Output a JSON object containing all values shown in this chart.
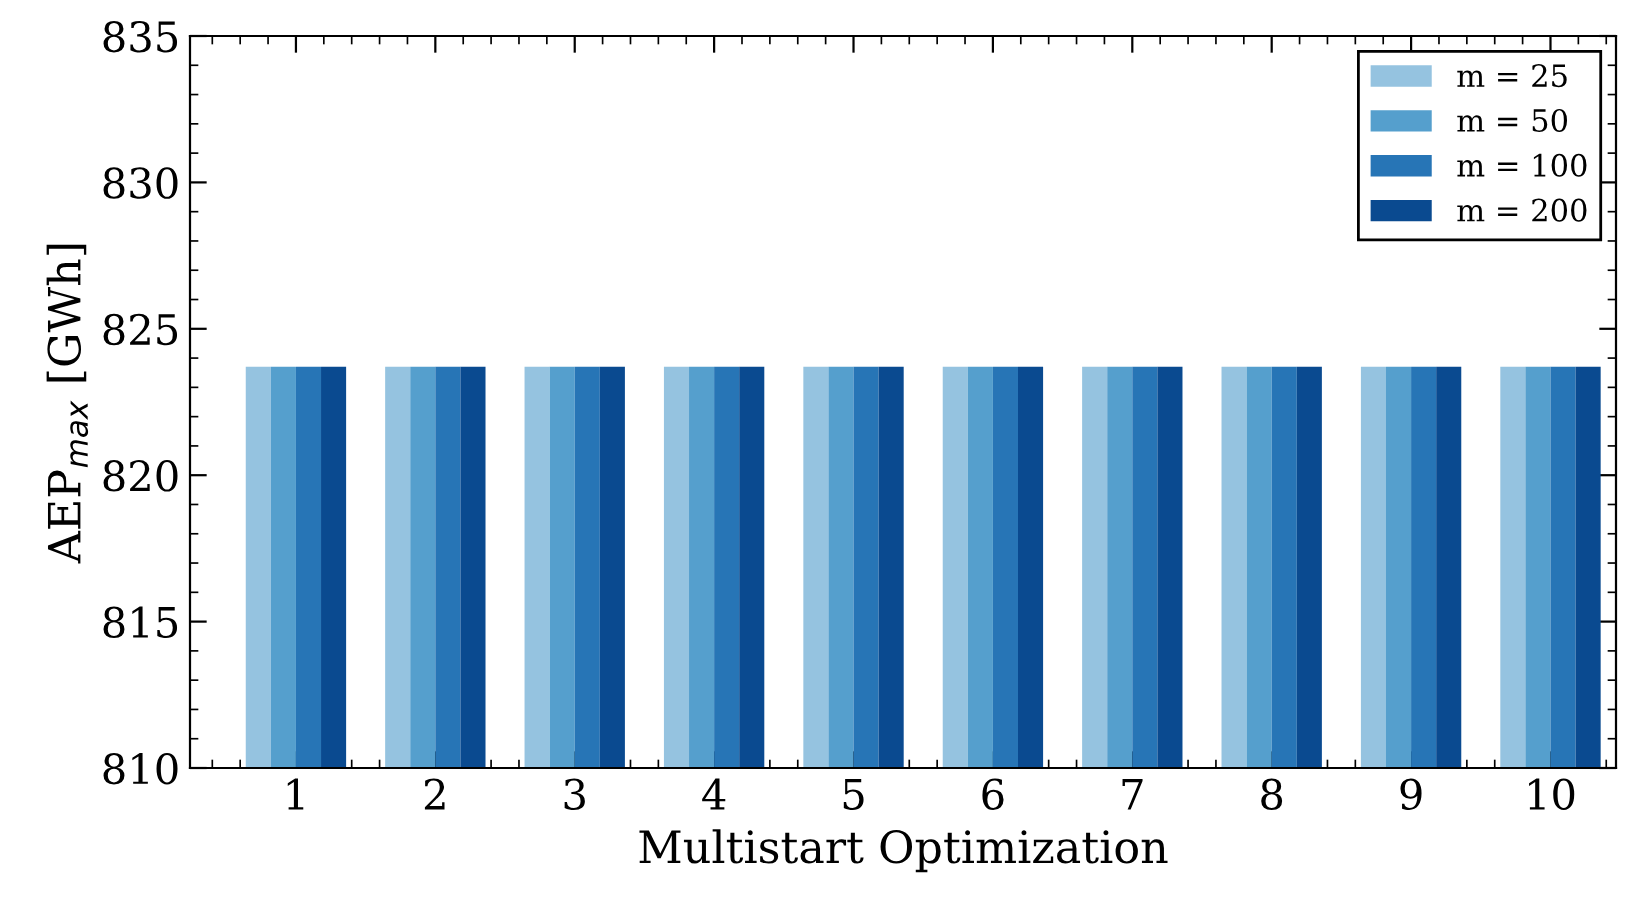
{
  "chart_data": {
    "type": "bar",
    "xlabel": "Multistart Optimization",
    "ylabel": "AEP$_{max}$ [GWh]",
    "categories": [
      "1",
      "2",
      "3",
      "4",
      "5",
      "6",
      "7",
      "8",
      "9",
      "10"
    ],
    "series": [
      {
        "name": "m = 25",
        "color": "#95c3e0",
        "values": [
          823.7,
          823.7,
          823.7,
          823.7,
          823.7,
          823.7,
          823.7,
          823.7,
          823.7,
          823.7
        ]
      },
      {
        "name": "m = 50",
        "color": "#559fcd",
        "values": [
          823.7,
          823.7,
          823.7,
          823.7,
          823.7,
          823.7,
          823.7,
          823.7,
          823.7,
          823.7
        ]
      },
      {
        "name": "m = 100",
        "color": "#2775b6",
        "values": [
          823.7,
          823.7,
          823.7,
          823.7,
          823.7,
          823.7,
          823.7,
          823.7,
          823.7,
          823.7
        ]
      },
      {
        "name": "m = 200",
        "color": "#0a4a90",
        "values": [
          823.7,
          823.7,
          823.7,
          823.7,
          823.7,
          823.7,
          823.7,
          823.7,
          823.7,
          823.7
        ]
      }
    ],
    "ylim": [
      810,
      835
    ],
    "yticks": [
      810,
      815,
      820,
      825,
      830,
      835
    ],
    "grid": false,
    "legend": "top right"
  }
}
